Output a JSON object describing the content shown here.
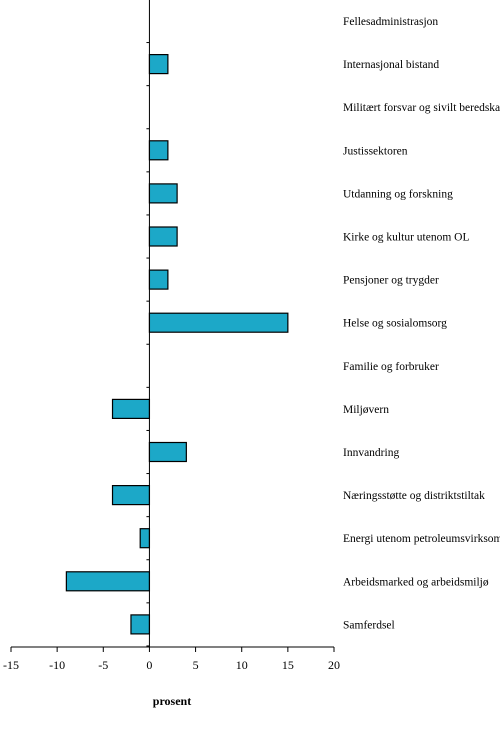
{
  "chart_data": {
    "type": "bar",
    "orientation": "horizontal",
    "xlabel": "prosent",
    "xlim": [
      -15,
      20
    ],
    "xticks": [
      -15,
      -10,
      -5,
      0,
      5,
      10,
      15,
      20
    ],
    "bar_color": "#1CA8C8",
    "categories": [
      "Fellesadministrasjon",
      "Internasjonal bistand",
      "Militært forsvar og sivilt beredskap",
      "Justissektoren",
      "Utdanning og forskning",
      "Kirke og kultur utenom OL",
      "Pensjoner og trygder",
      "Helse og sosialomsorg",
      "Familie og forbruker",
      "Miljøvern",
      "Innvandring",
      "Næringsstøtte og distriktstiltak",
      "Energi utenom petroleumsvirksomhet",
      "Arbeidsmarked og arbeidsmiljø",
      "Samferdsel"
    ],
    "values": [
      0,
      2,
      0,
      2,
      3,
      3,
      2,
      15,
      0,
      -4,
      4,
      -4,
      -1,
      -9,
      -2
    ]
  }
}
